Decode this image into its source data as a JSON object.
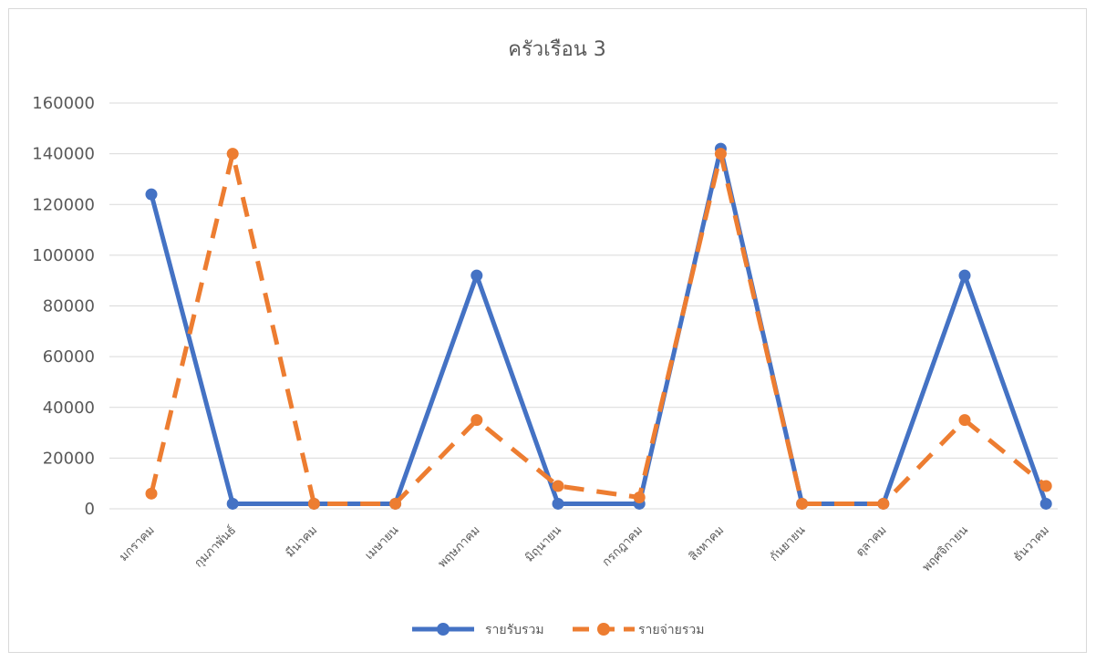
{
  "chart_data": {
    "type": "line",
    "title": "ครัวเรือน 3",
    "xlabel": "",
    "ylabel": "",
    "categories": [
      "มกราคม",
      "กุมภาพันธ์",
      "มีนาคม",
      "เมษายน",
      "พฤษภาคม",
      "มิถุนายน",
      "กรกฎาคม",
      "สิงหาคม",
      "กันยายน",
      "ตุลาคม",
      "พฤศจิกายน",
      "ธันวาคม"
    ],
    "ylim": [
      0,
      160000
    ],
    "yticks": [
      "0",
      "20000",
      "40000",
      "60000",
      "80000",
      "100000",
      "120000",
      "140000",
      "160000"
    ],
    "grid": true,
    "legend": "bottom",
    "series": [
      {
        "name": "รายรับรวม",
        "color": "#4472c4",
        "dash": "solid",
        "values": [
          124000,
          2000,
          2000,
          2000,
          92000,
          2000,
          2000,
          142000,
          2000,
          2000,
          92000,
          2000
        ]
      },
      {
        "name": "รายจ่ายรวม",
        "color": "#ed7d31",
        "dash": "dashed",
        "values": [
          6000,
          140000,
          2000,
          2000,
          35000,
          9000,
          4500,
          140000,
          2000,
          2000,
          35000,
          9000
        ]
      }
    ]
  }
}
